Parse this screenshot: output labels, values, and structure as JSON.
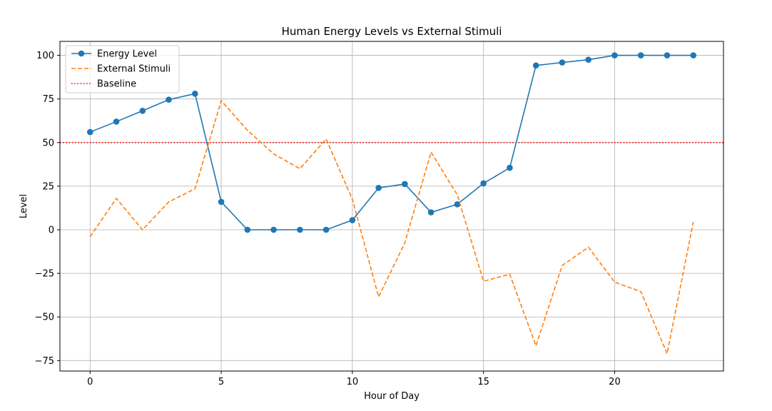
{
  "chart_data": {
    "type": "line",
    "title": "Human Energy Levels vs External Stimuli",
    "xlabel": "Hour of Day",
    "ylabel": "Level",
    "xlim": [
      -1.15,
      24.15
    ],
    "ylim": [
      -81,
      108
    ],
    "xticks": [
      0,
      5,
      10,
      15,
      20
    ],
    "yticks": [
      -75,
      -50,
      -25,
      0,
      25,
      50,
      75,
      100
    ],
    "grid": true,
    "legend_position": "top-left",
    "x": [
      0,
      1,
      2,
      3,
      4,
      5,
      6,
      7,
      8,
      9,
      10,
      11,
      12,
      13,
      14,
      15,
      16,
      17,
      18,
      19,
      20,
      21,
      22,
      23
    ],
    "series": [
      {
        "name": "Energy Level",
        "style": "solid-with-markers",
        "color": "#1f77b4",
        "values": [
          56,
          62,
          68.2,
          74.6,
          78,
          16,
          0,
          0,
          0,
          0,
          5.5,
          24,
          26.2,
          10,
          14.6,
          26.6,
          35.5,
          94.2,
          95.9,
          97.5,
          100,
          100,
          100,
          100
        ]
      },
      {
        "name": "External Stimuli",
        "style": "dashed",
        "color": "#ff7f0e",
        "values": [
          -4,
          18,
          0,
          16,
          23.5,
          74,
          57,
          43.5,
          35,
          52,
          17.5,
          -38.5,
          -7.5,
          44.5,
          20,
          -29.5,
          -25.5,
          -66.5,
          -20.5,
          -10,
          -30,
          -35.5,
          -71,
          4.5
        ]
      }
    ],
    "baseline": {
      "name": "Baseline",
      "value": 50,
      "style": "dotted",
      "color": "#ff0000"
    }
  }
}
